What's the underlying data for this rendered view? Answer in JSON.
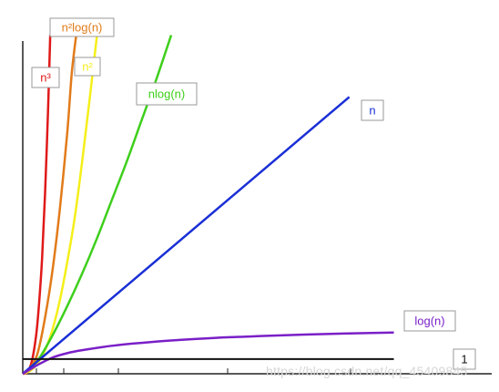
{
  "chart_data": {
    "type": "line",
    "title": "",
    "xlabel": "",
    "ylabel": "",
    "grid": false,
    "legend": "labels next to curves",
    "series": [
      {
        "name": "n³",
        "color": "#e01919",
        "points": [
          [
            0,
            0
          ],
          [
            0.3,
            0.05
          ],
          [
            0.6,
            0.4
          ],
          [
            0.9,
            1.3
          ],
          [
            1.1,
            2.4
          ],
          [
            1.3,
            3.9
          ],
          [
            1.5,
            6.1
          ],
          [
            1.7,
            8.9
          ],
          [
            1.85,
            11.5
          ]
        ]
      },
      {
        "name": "n²log(n)",
        "color": "#e27b1a",
        "points": [
          [
            0,
            0
          ],
          [
            0.5,
            0.2
          ],
          [
            1,
            0.7
          ],
          [
            1.5,
            1.9
          ],
          [
            2,
            3.5
          ],
          [
            2.5,
            5.6
          ],
          [
            3,
            8.2
          ],
          [
            3.3,
            10.2
          ],
          [
            3.6,
            11.5
          ]
        ]
      },
      {
        "name": "n²",
        "color": "#f5ef19",
        "points": [
          [
            0,
            0
          ],
          [
            0.5,
            0.1
          ],
          [
            1,
            0.35
          ],
          [
            1.5,
            0.8
          ],
          [
            2,
            1.5
          ],
          [
            2.5,
            2.5
          ],
          [
            3,
            3.8
          ],
          [
            3.5,
            5.3
          ],
          [
            4,
            7.2
          ],
          [
            4.5,
            9.3
          ],
          [
            5,
            11.5
          ]
        ]
      },
      {
        "name": "nlog(n)",
        "color": "#3ecf1c",
        "points": [
          [
            0,
            0
          ],
          [
            1,
            0.45
          ],
          [
            2,
            1.3
          ],
          [
            3,
            2.3
          ],
          [
            4,
            3.4
          ],
          [
            5,
            4.6
          ],
          [
            6,
            5.9
          ],
          [
            7,
            7.2
          ],
          [
            8,
            8.6
          ],
          [
            9,
            10.0
          ],
          [
            10,
            11.5
          ]
        ]
      },
      {
        "name": "n",
        "color": "#1a2fd6",
        "points": [
          [
            0,
            0
          ],
          [
            22,
            9.4
          ]
        ]
      },
      {
        "name": "log(n)",
        "color": "#7a1fc7",
        "points": [
          [
            0,
            0
          ],
          [
            0.5,
            0.15
          ],
          [
            1,
            0.3
          ],
          [
            2,
            0.55
          ],
          [
            3,
            0.7
          ],
          [
            4,
            0.8
          ],
          [
            6,
            0.95
          ],
          [
            8,
            1.05
          ],
          [
            10,
            1.13
          ],
          [
            13,
            1.22
          ],
          [
            16,
            1.28
          ],
          [
            19,
            1.33
          ],
          [
            22,
            1.37
          ],
          [
            25,
            1.4
          ]
        ]
      },
      {
        "name": "1",
        "color": "#111111",
        "points": [
          [
            0,
            0.5
          ],
          [
            25,
            0.5
          ]
        ]
      }
    ]
  }
}
